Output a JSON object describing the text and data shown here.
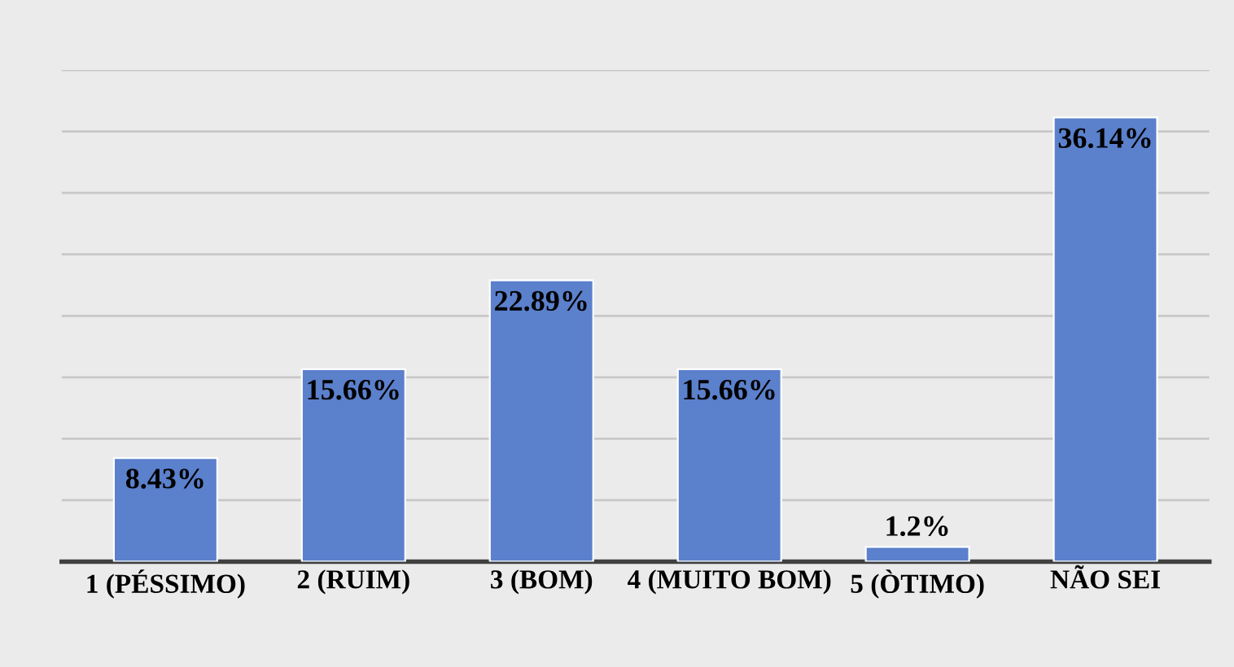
{
  "chart_data": {
    "type": "bar",
    "categories": [
      "1 (PÉSSIMO)",
      "2 (RUIM)",
      "3 (BOM)",
      "4 (MUITO BOM)",
      "5 (ÒTIMO)",
      "NÃO SEI"
    ],
    "values": [
      8.43,
      15.66,
      22.89,
      15.66,
      1.2,
      36.14
    ],
    "value_labels": [
      "8.43%",
      "15.66%",
      "22.89%",
      "15.66%",
      "1.2%",
      "36.14%"
    ],
    "color": "#5b80cc",
    "ylim": [
      0,
      40
    ],
    "yticks": [
      {
        "value": 0,
        "label": null
      },
      {
        "value": 5,
        "label": null
      },
      {
        "value": 10,
        "label": null
      },
      {
        "value": 15,
        "label": null
      },
      {
        "value": 20,
        "label": null
      },
      {
        "value": 25,
        "label": null
      },
      {
        "value": 30,
        "label": null
      },
      {
        "value": 35,
        "label": null
      },
      {
        "value": 40,
        "label": null
      }
    ],
    "tick_labels": "x",
    "grid": "y"
  }
}
